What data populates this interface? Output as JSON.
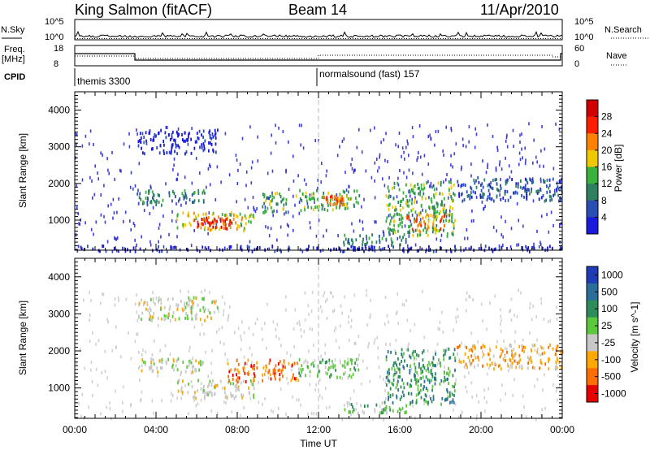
{
  "header": {
    "station": "King Salmon (fitACF)",
    "beam": "Beam 14",
    "date": "11/Apr/2010"
  },
  "top_panels": {
    "nsky_label": "N.Sky",
    "nsky_ticks": [
      "10^5",
      "10^0"
    ],
    "nsearch_label": "N.Search",
    "nsearch_ticks": [
      "10^5",
      "10^0"
    ],
    "freq_label_1": "Freq.",
    "freq_label_2": "[MHz]",
    "freq_ticks": [
      "18",
      "8"
    ],
    "nave_label": "Nave",
    "nave_ticks": [
      "60",
      "0"
    ],
    "cpid_label": "CPID",
    "cpid_modes": [
      "themis 3300",
      "normalsound (fast) 157"
    ]
  },
  "chart_data": [
    {
      "type": "heatmap",
      "name": "power",
      "ylabel": "Slant Range [km]",
      "ylim": [
        180,
        4500
      ],
      "yticks": [
        "1000",
        "2000",
        "3000",
        "4000"
      ],
      "xlim": [
        0,
        24
      ],
      "colorbar_label": "Power [dB]",
      "colorbar_ticks": [
        "4",
        "8",
        "12",
        "16",
        "20",
        "24",
        "28"
      ],
      "colors": [
        "#1a1adc",
        "#2a4fb4",
        "#2f8060",
        "#37b23c",
        "#f0c800",
        "#ff8200",
        "#ff1e00",
        "#d00000"
      ],
      "regions": [
        {
          "t0": 3.1,
          "t1": 7.0,
          "r0": 2850,
          "r1": 3500,
          "level": 0
        },
        {
          "t0": 3.0,
          "t1": 6.4,
          "r0": 1450,
          "r1": 1850,
          "level": 2
        },
        {
          "t0": 5.0,
          "t1": 8.8,
          "r0": 750,
          "r1": 1250,
          "level": 4
        },
        {
          "t0": 6.0,
          "t1": 7.8,
          "r0": 800,
          "r1": 1100,
          "level": 6
        },
        {
          "t0": 9.2,
          "t1": 10.4,
          "r0": 1200,
          "r1": 1800,
          "level": 3
        },
        {
          "t0": 10.8,
          "t1": 14.0,
          "r0": 1300,
          "r1": 1850,
          "level": 3
        },
        {
          "t0": 12.2,
          "t1": 13.2,
          "r0": 1450,
          "r1": 1700,
          "level": 5
        },
        {
          "t0": 13.2,
          "t1": 16.3,
          "r0": 350,
          "r1": 650,
          "level": 2
        },
        {
          "t0": 15.3,
          "t1": 18.7,
          "r0": 600,
          "r1": 2100,
          "level": 3
        },
        {
          "t0": 16.3,
          "t1": 18.2,
          "r0": 700,
          "r1": 1200,
          "level": 5
        },
        {
          "t0": 18.8,
          "t1": 24.0,
          "r0": 1550,
          "r1": 2200,
          "level": 1
        },
        {
          "t0": 0.0,
          "t1": 24.0,
          "r0": 180,
          "r1": 330,
          "level": 0
        }
      ]
    },
    {
      "type": "heatmap",
      "name": "velocity",
      "ylabel": "Slant Range [km]",
      "ylim": [
        180,
        4500
      ],
      "yticks": [
        "1000",
        "2000",
        "3000",
        "4000"
      ],
      "xlim": [
        0,
        24
      ],
      "xlabel": "Time UT",
      "xticks": [
        "00:00",
        "04:00",
        "08:00",
        "12:00",
        "16:00",
        "20:00",
        "00:00"
      ],
      "colorbar_label": "Velocity [m s^-1]",
      "colorbar_ticks": [
        "1000",
        "500",
        "100",
        "25",
        "-25",
        "-100",
        "-500",
        "-1000"
      ],
      "colors": [
        "#1e3cb4",
        "#2c6e9a",
        "#2e8c5a",
        "#5cc83c",
        "#c8c8c8",
        "#ffa800",
        "#ff6e00",
        "#e60000"
      ],
      "regions": [
        {
          "t0": 3.1,
          "t1": 7.0,
          "r0": 2850,
          "r1": 3500,
          "level": 4
        },
        {
          "t0": 3.0,
          "t1": 6.4,
          "r0": 1450,
          "r1": 1850,
          "level": 4
        },
        {
          "t0": 5.0,
          "t1": 8.8,
          "r0": 750,
          "r1": 1250,
          "level": 4
        },
        {
          "t0": 7.5,
          "t1": 9.0,
          "r0": 1200,
          "r1": 1800,
          "level": 6
        },
        {
          "t0": 9.2,
          "t1": 11.0,
          "r0": 1200,
          "r1": 1800,
          "level": 6
        },
        {
          "t0": 11.0,
          "t1": 14.0,
          "r0": 1300,
          "r1": 1850,
          "level": 3
        },
        {
          "t0": 13.2,
          "t1": 16.3,
          "r0": 350,
          "r1": 650,
          "level": 3
        },
        {
          "t0": 15.3,
          "t1": 18.7,
          "r0": 600,
          "r1": 2100,
          "level": 2
        },
        {
          "t0": 18.8,
          "t1": 24.0,
          "r0": 1550,
          "r1": 2200,
          "level": 5
        }
      ]
    }
  ]
}
